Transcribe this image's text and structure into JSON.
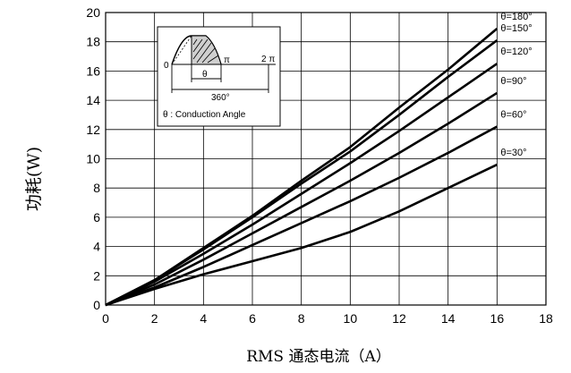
{
  "chart_data": {
    "type": "line",
    "title": "",
    "xlabel": "RMS 通态电流（A）",
    "ylabel": "功耗(W)",
    "xlim": [
      0,
      18
    ],
    "ylim": [
      0,
      20
    ],
    "xticks": [
      0,
      2,
      4,
      6,
      8,
      10,
      12,
      14,
      16,
      18
    ],
    "yticks": [
      0,
      2,
      4,
      6,
      8,
      10,
      12,
      14,
      16,
      18,
      20
    ],
    "grid": true,
    "x": [
      0,
      2,
      4,
      6,
      8,
      10,
      12,
      14,
      16
    ],
    "series": [
      {
        "name": "θ=180°",
        "values": [
          0,
          1.7,
          3.9,
          6.1,
          8.5,
          10.8,
          13.5,
          16.1,
          18.9
        ]
      },
      {
        "name": "θ=150°",
        "values": [
          0,
          1.7,
          3.8,
          6.0,
          8.3,
          10.5,
          13.0,
          15.6,
          18.1
        ]
      },
      {
        "name": "θ=120°",
        "values": [
          0,
          1.6,
          3.5,
          5.5,
          7.6,
          9.7,
          11.9,
          14.2,
          16.5
        ]
      },
      {
        "name": "θ=90°",
        "values": [
          0,
          1.4,
          3.1,
          4.9,
          6.7,
          8.5,
          10.4,
          12.4,
          14.5
        ]
      },
      {
        "name": "θ=60°",
        "values": [
          0,
          1.2,
          2.6,
          4.1,
          5.6,
          7.1,
          8.7,
          10.4,
          12.2
        ]
      },
      {
        "name": "θ=30°",
        "values": [
          0,
          1.1,
          2.1,
          3.0,
          3.9,
          5.0,
          6.4,
          8.0,
          9.6
        ]
      }
    ],
    "inset": {
      "label_zero": "0",
      "label_pi": "π",
      "label_2pi": "2 π",
      "label_theta": "θ",
      "label_360": "360°",
      "legend": "θ : Conduction Angle"
    }
  }
}
